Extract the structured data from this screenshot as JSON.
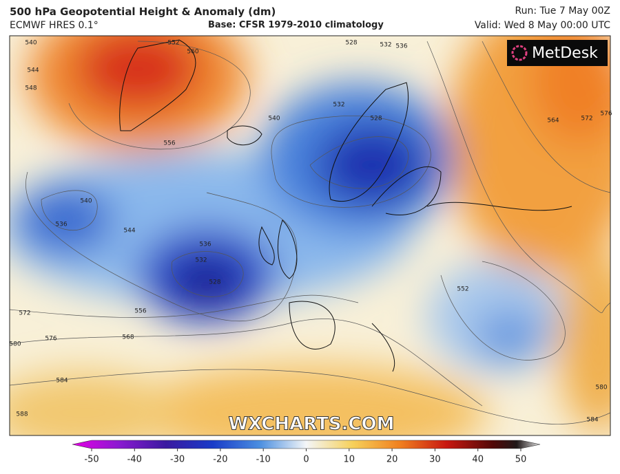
{
  "header": {
    "title": "500 hPa Geopotential Height & Anomaly (dm)",
    "model": "ECMWF HRES 0.1°",
    "base": "Base: CFSR 1979-2010 climatology",
    "run": "Run: Tue 7 May 00Z",
    "valid": "Valid: Wed 8 May 00:00 UTC"
  },
  "logo": "MetDesk",
  "watermark": "WXCHARTS.COM",
  "contour_labels": [
    "540",
    "544",
    "548",
    "552",
    "556",
    "560",
    "528",
    "532",
    "536",
    "540",
    "532",
    "528",
    "564",
    "572",
    "576",
    "536",
    "540",
    "544",
    "536",
    "532",
    "528",
    "556",
    "552",
    "572",
    "576",
    "568",
    "580",
    "584",
    "588",
    "580",
    "584"
  ],
  "colorbar": {
    "ticks": [
      -50,
      -40,
      -30,
      -20,
      -10,
      0,
      10,
      20,
      30,
      40,
      50
    ]
  }
}
